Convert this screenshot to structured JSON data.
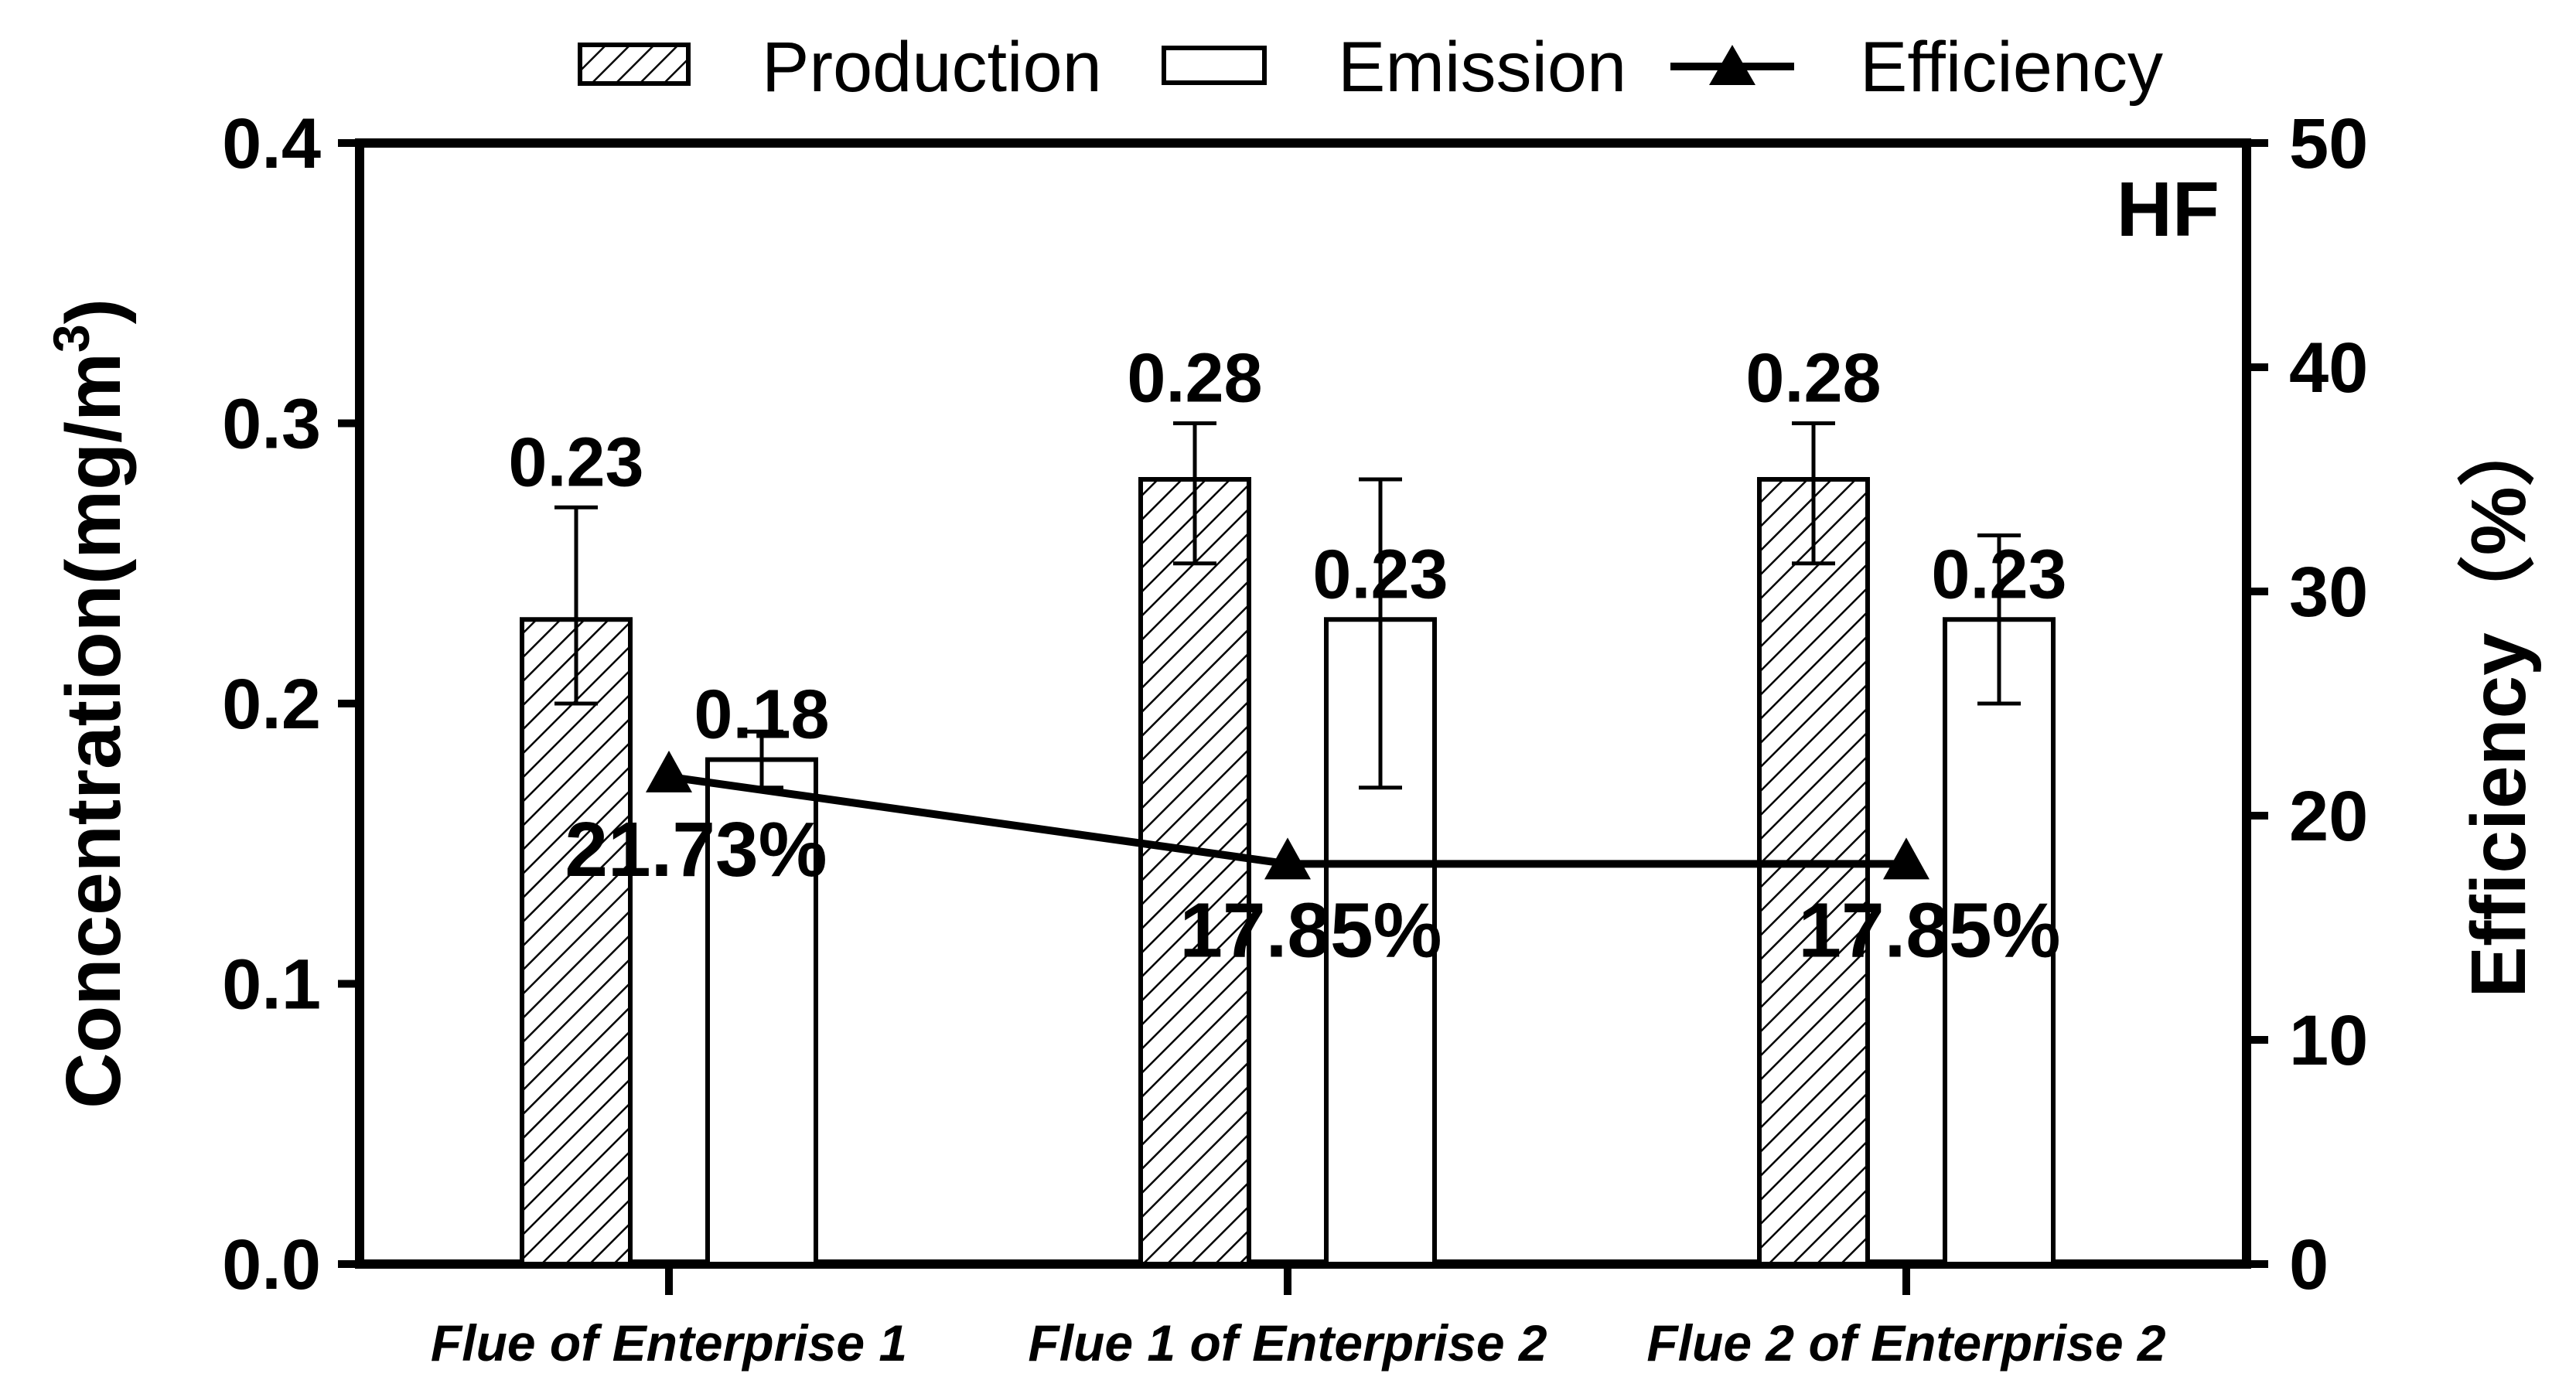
{
  "chart_data": {
    "type": "bar",
    "categories": [
      "Flue of Enterprise 1",
      "Flue 1 of Enterprise 2",
      "Flue 2 of Enterprise 2"
    ],
    "series": [
      {
        "name": "Production",
        "values": [
          0.23,
          0.28,
          0.28
        ],
        "error_low": [
          0.2,
          0.25,
          0.25
        ],
        "error_high": [
          0.27,
          0.3,
          0.3
        ],
        "labels": [
          "0.23",
          "0.28",
          "0.28"
        ],
        "style": "hatched"
      },
      {
        "name": "Emission",
        "values": [
          0.18,
          0.23,
          0.23
        ],
        "error_low": [
          0.17,
          0.17,
          0.2
        ],
        "error_high": [
          0.19,
          0.28,
          0.26
        ],
        "labels": [
          "0.18",
          "0.23",
          "0.23"
        ],
        "style": "open"
      },
      {
        "name": "Efficiency",
        "type": "line",
        "axis": "right",
        "values": [
          21.73,
          17.85,
          17.85
        ],
        "labels": [
          "21.73%",
          "17.85%",
          "17.85%"
        ],
        "marker": "triangle"
      }
    ],
    "annotation": "HF",
    "ylabel_left_main": "Concentration(mg/m",
    "ylabel_left_sup": "3",
    "ylabel_left_close": ")",
    "ylabel_right": "Efficiency（%）",
    "ylim_left": [
      0,
      0.4
    ],
    "yticks_left": [
      "0.0",
      "0.1",
      "0.2",
      "0.3",
      "0.4"
    ],
    "ylim_right": [
      0,
      50
    ],
    "yticks_right": [
      "0",
      "10",
      "20",
      "30",
      "40",
      "50"
    ],
    "legend": [
      "Production",
      "Emission",
      "Efficiency"
    ],
    "legend_position": "top-right",
    "grid": false
  }
}
